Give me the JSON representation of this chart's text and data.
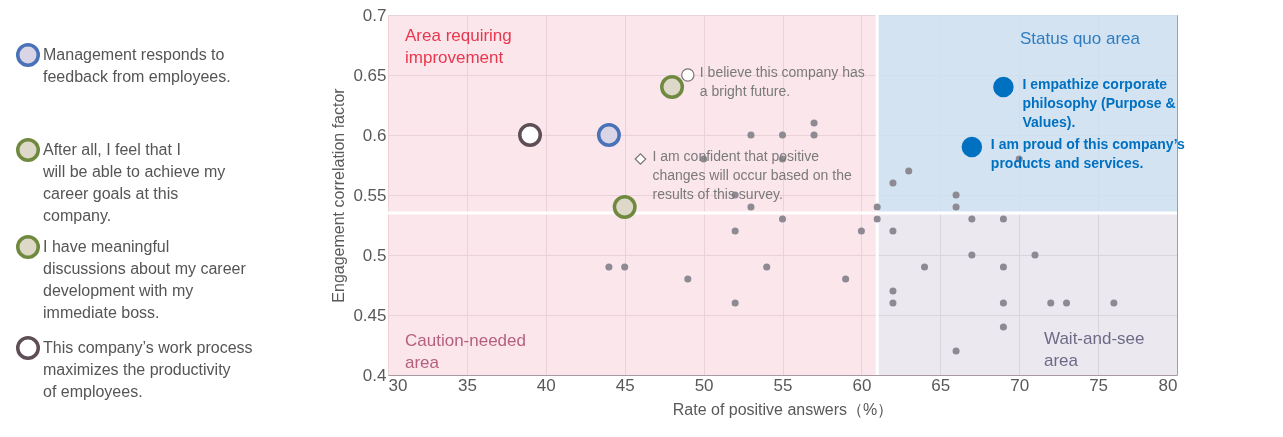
{
  "chart_data": {
    "type": "scatter",
    "xlabel": "Rate of positive answers（%）",
    "ylabel": "Engagement correlation factor",
    "xlim": [
      30,
      80
    ],
    "xticks": [
      30,
      35,
      40,
      45,
      50,
      55,
      60,
      65,
      70,
      75,
      80
    ],
    "ylim": [
      0.4,
      0.7
    ],
    "yticks": [
      0.4,
      0.45,
      0.5,
      0.55,
      0.6,
      0.65,
      0.7
    ],
    "grid": true,
    "legend": "left",
    "marker": "circle",
    "bands": [
      {
        "axis": "x",
        "from": 30,
        "to": 61,
        "color": "#f9e0e6"
      },
      {
        "axis": "x",
        "from": 61,
        "to": 80,
        "color": "#e6e3eb"
      },
      {
        "axis": "y",
        "from": 0.535,
        "to": 0.7,
        "color": "#cde1f2"
      }
    ],
    "ref_lines": [
      {
        "axis": "x",
        "value": 61,
        "color": "#ffffff"
      },
      {
        "axis": "y",
        "value": 0.535,
        "color": "#ffffff"
      }
    ],
    "series": [
      {
        "color": "#8e8a94",
        "x": [
          53,
          55,
          57,
          57,
          50,
          55,
          52,
          53,
          55,
          52,
          60,
          44,
          45,
          49,
          54,
          59,
          52,
          61,
          61,
          63,
          62,
          66,
          66,
          70,
          67,
          69,
          62,
          67,
          71,
          64,
          69,
          62,
          62,
          69,
          72,
          73,
          76,
          69,
          66
        ],
        "values": [
          0.6,
          0.6,
          0.61,
          0.6,
          0.58,
          0.58,
          0.55,
          0.54,
          0.53,
          0.52,
          0.52,
          0.49,
          0.49,
          0.48,
          0.49,
          0.48,
          0.46,
          0.54,
          0.53,
          0.57,
          0.56,
          0.55,
          0.54,
          0.58,
          0.53,
          0.53,
          0.52,
          0.5,
          0.5,
          0.49,
          0.49,
          0.47,
          0.46,
          0.46,
          0.46,
          0.46,
          0.46,
          0.44,
          0.42
        ]
      },
      {
        "name": "Management responds to feedback from employees.",
        "color": "#4a72b8",
        "x": [
          44
        ],
        "values": [
          0.6
        ]
      },
      {
        "name": "After all, I feel that I will be able to achieve my career goals at this company.",
        "color": "#6f8a3e",
        "x": [
          48
        ],
        "values": [
          0.64
        ]
      },
      {
        "name": "I have meaningful discussions about my career development with my immediate boss.",
        "color": "#6f8a3e",
        "x": [
          45
        ],
        "values": [
          0.54
        ]
      },
      {
        "name": "This company’s work process maximizes the productivity of employees.",
        "color": "#5e4e56",
        "x": [
          39
        ],
        "values": [
          0.6
        ]
      },
      {
        "color": "#7d7377",
        "x": [
          49
        ],
        "values": [
          0.65
        ]
      },
      {
        "color": "#7d7377",
        "marker": "diamond",
        "x": [
          46
        ],
        "values": [
          0.58
        ]
      },
      {
        "color": "#0070c0",
        "x": [
          69
        ],
        "values": [
          0.64
        ]
      },
      {
        "color": "#0070c0",
        "x": [
          67
        ],
        "values": [
          0.59
        ]
      }
    ],
    "annotations": [
      "Area requiring improvement",
      "Caution-needed area",
      "Status quo area",
      "Wait-and-see area",
      {
        "text": "I believe this company has a bright future.",
        "x": 49,
        "y": 0.65
      },
      {
        "text": "I am confident that positive changes will occur based on the results of this survey.",
        "x": 46,
        "y": 0.58
      },
      {
        "text": "I empathize corporate philosophy (Purpose & Values).",
        "x": 69,
        "y": 0.64
      },
      {
        "text": "I am proud of this company’s products and services.",
        "x": 67,
        "y": 0.59
      }
    ]
  }
}
